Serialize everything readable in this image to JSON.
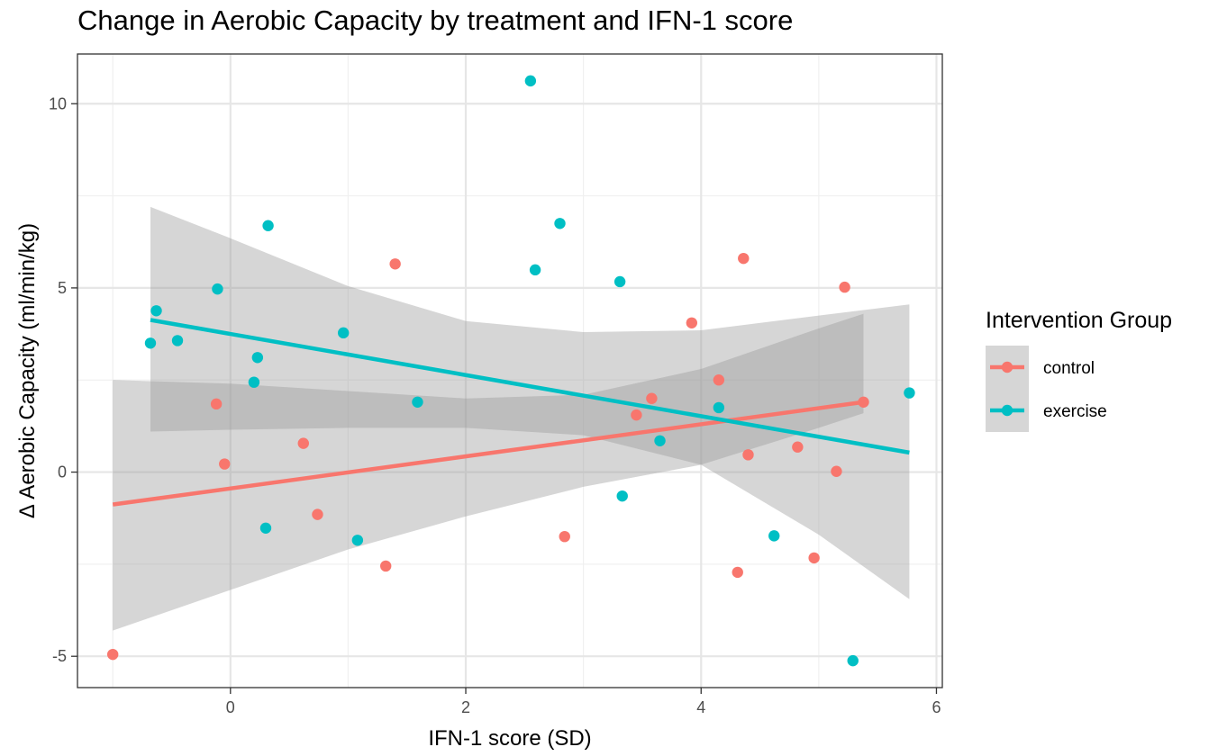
{
  "chart_data": {
    "type": "scatter",
    "title": "Change in Aerobic Capacity by treatment and IFN-1 score",
    "xlabel": "IFN-1 score (SD)",
    "ylabel": "Δ Aerobic Capacity (ml/min/kg)",
    "xlim": [
      -1.3,
      6.05
    ],
    "ylim": [
      -5.85,
      11.35
    ],
    "x_ticks": [
      "0",
      "2",
      "4",
      "6"
    ],
    "y_ticks": [
      "-5",
      "0",
      "5",
      "10"
    ],
    "grid": true,
    "legend": {
      "title": "Intervention Group",
      "position": "right",
      "entries": [
        "control",
        "exercise"
      ]
    },
    "series": [
      {
        "name": "control",
        "color": "#F8766D",
        "points": [
          {
            "x": -1.0,
            "y": -4.95
          },
          {
            "x": -0.12,
            "y": 1.85
          },
          {
            "x": -0.05,
            "y": 0.22
          },
          {
            "x": 0.62,
            "y": 0.78
          },
          {
            "x": 0.74,
            "y": -1.15
          },
          {
            "x": 1.32,
            "y": -2.55
          },
          {
            "x": 1.4,
            "y": 5.65
          },
          {
            "x": 2.84,
            "y": -1.75
          },
          {
            "x": 3.45,
            "y": 1.55
          },
          {
            "x": 3.58,
            "y": 2.0
          },
          {
            "x": 3.92,
            "y": 4.05
          },
          {
            "x": 4.15,
            "y": 2.5
          },
          {
            "x": 4.31,
            "y": -2.72
          },
          {
            "x": 4.36,
            "y": 5.8
          },
          {
            "x": 4.4,
            "y": 0.47
          },
          {
            "x": 4.82,
            "y": 0.68
          },
          {
            "x": 4.96,
            "y": -2.33
          },
          {
            "x": 5.15,
            "y": 0.02
          },
          {
            "x": 5.22,
            "y": 5.02
          },
          {
            "x": 5.38,
            "y": 1.9
          }
        ],
        "trend": {
          "x": [
            -1.0,
            5.38
          ],
          "y": [
            -0.88,
            1.9
          ]
        },
        "ci": {
          "x": [
            -1.0,
            0.0,
            1.0,
            2.0,
            3.0,
            4.0,
            5.0,
            5.38
          ],
          "lower": [
            -4.3,
            -3.2,
            -2.1,
            -1.2,
            -0.4,
            0.2,
            1.2,
            1.6
          ],
          "upper": [
            2.5,
            2.4,
            2.2,
            2.0,
            2.1,
            2.8,
            3.9,
            4.3
          ]
        }
      },
      {
        "name": "exercise",
        "color": "#00BFC4",
        "points": [
          {
            "x": -0.68,
            "y": 3.5
          },
          {
            "x": -0.63,
            "y": 4.38
          },
          {
            "x": -0.45,
            "y": 3.57
          },
          {
            "x": -0.11,
            "y": 4.97
          },
          {
            "x": 0.2,
            "y": 2.44
          },
          {
            "x": 0.23,
            "y": 3.11
          },
          {
            "x": 0.3,
            "y": -1.52
          },
          {
            "x": 0.32,
            "y": 6.69
          },
          {
            "x": 0.96,
            "y": 3.78
          },
          {
            "x": 1.08,
            "y": -1.85
          },
          {
            "x": 1.59,
            "y": 1.9
          },
          {
            "x": 2.55,
            "y": 10.62
          },
          {
            "x": 2.59,
            "y": 5.49
          },
          {
            "x": 2.8,
            "y": 6.75
          },
          {
            "x": 3.31,
            "y": 5.17
          },
          {
            "x": 3.33,
            "y": -0.65
          },
          {
            "x": 3.65,
            "y": 0.85
          },
          {
            "x": 4.15,
            "y": 1.75
          },
          {
            "x": 4.62,
            "y": -1.73
          },
          {
            "x": 5.29,
            "y": -5.12
          },
          {
            "x": 5.77,
            "y": 2.15
          }
        ],
        "trend": {
          "x": [
            -0.68,
            5.77
          ],
          "y": [
            4.13,
            0.53
          ]
        },
        "ci": {
          "x": [
            -0.68,
            0.0,
            1.0,
            2.0,
            3.0,
            4.0,
            5.0,
            5.77
          ],
          "lower": [
            1.1,
            1.15,
            1.2,
            1.2,
            1.0,
            0.2,
            -1.7,
            -3.45
          ],
          "upper": [
            7.2,
            6.35,
            5.05,
            4.1,
            3.8,
            3.85,
            4.25,
            4.55
          ]
        }
      }
    ]
  }
}
